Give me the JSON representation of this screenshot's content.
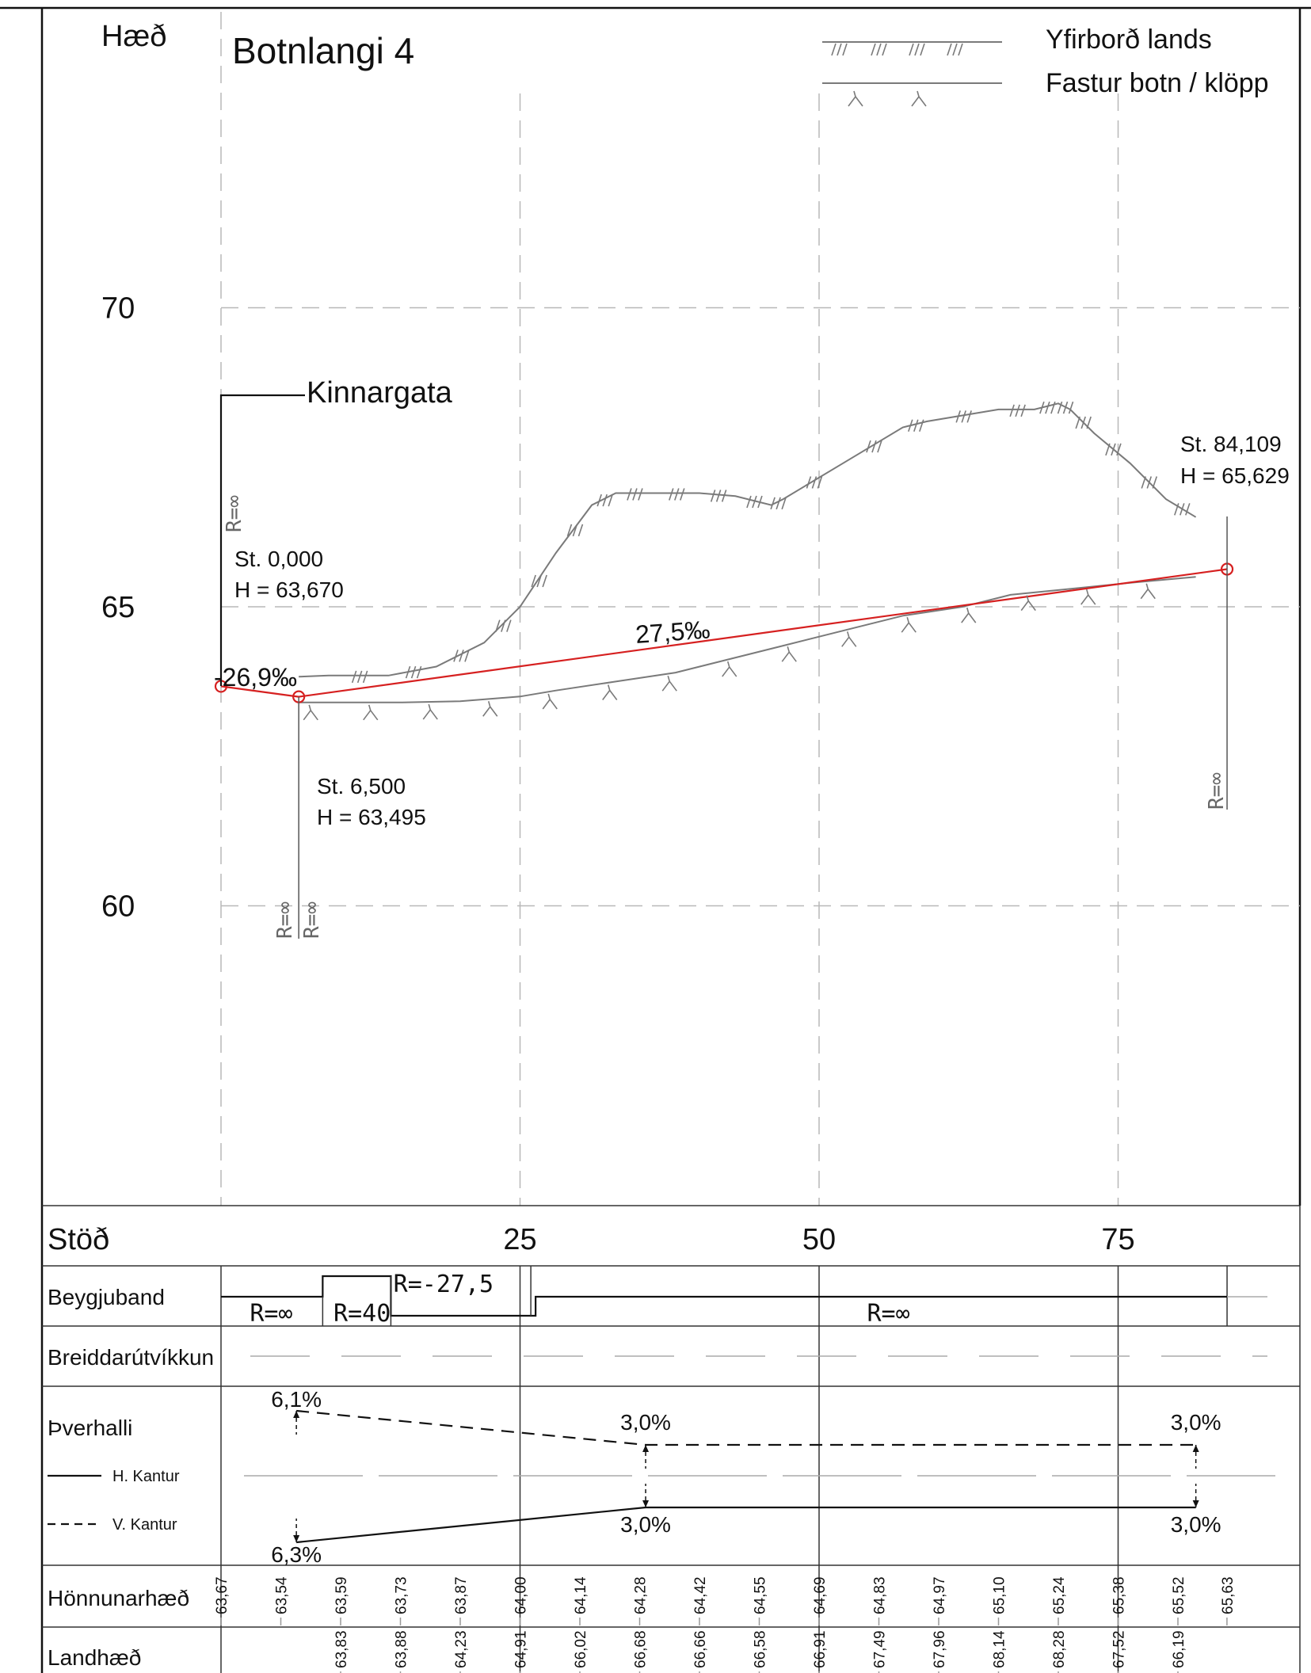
{
  "title": "Botnlangi 4",
  "y_axis": {
    "label": "Hæð",
    "ticks": [
      {
        "value": 70,
        "label": "70"
      },
      {
        "value": 65,
        "label": "65"
      },
      {
        "value": 60,
        "label": "60"
      }
    ]
  },
  "x_axis": {
    "label": "Stöð",
    "ticks": [
      {
        "value": 25,
        "label": "25"
      },
      {
        "value": 50,
        "label": "50"
      },
      {
        "value": 75,
        "label": "75"
      }
    ]
  },
  "legend": [
    {
      "label": "Yfirborð lands",
      "symbol": "hatch"
    },
    {
      "label": "Fastur botn / klöpp",
      "symbol": "fork"
    }
  ],
  "road_label": "Kinnargata",
  "stations": [
    {
      "st_text": "St. 0,000",
      "h_text": "H = 63,670",
      "st": 0.0,
      "h": 63.67
    },
    {
      "st_text": "St. 6,500",
      "h_text": "H = 63,495",
      "st": 6.5,
      "h": 63.495
    },
    {
      "st_text": "St. 84,109",
      "h_text": "H = 65,629",
      "st": 84.109,
      "h": 65.629
    }
  ],
  "grade_labels": [
    {
      "text": "-26,9‰"
    },
    {
      "text": "27,5‰"
    }
  ],
  "radius_labels": {
    "infinite": "R=∞"
  },
  "chart_data": {
    "type": "line",
    "xlim": [
      -15,
      90
    ],
    "ylim": [
      55.5,
      72
    ],
    "grid": true,
    "series": [
      {
        "name": "Yfirborð lands",
        "x": [
          6.5,
          9,
          14,
          18,
          22,
          25,
          28,
          31,
          33,
          36,
          40,
          43,
          46,
          47,
          52,
          57,
          59,
          65,
          68,
          70,
          71,
          73,
          76,
          79,
          81.5
        ],
        "y": [
          63.83,
          63.85,
          63.85,
          64.0,
          64.4,
          65.0,
          65.9,
          66.7,
          66.9,
          66.9,
          66.9,
          66.85,
          66.7,
          66.8,
          67.4,
          68.0,
          68.1,
          68.3,
          68.3,
          68.4,
          68.3,
          67.9,
          67.4,
          66.8,
          66.5
        ]
      },
      {
        "name": "Fastur botn / klöpp",
        "x": [
          6.5,
          10,
          15,
          20,
          25,
          28,
          33,
          38,
          42,
          47,
          52,
          57,
          62,
          66,
          71,
          76,
          81.5
        ],
        "y": [
          63.4,
          63.4,
          63.4,
          63.42,
          63.5,
          63.6,
          63.75,
          63.9,
          64.1,
          64.35,
          64.6,
          64.85,
          65.0,
          65.2,
          65.3,
          65.4,
          65.5
        ]
      },
      {
        "name": "",
        "x": [
          0,
          6.5,
          84.109
        ],
        "y": [
          63.67,
          63.495,
          65.629
        ]
      }
    ]
  },
  "bands": {
    "beygjuband": {
      "label": "Beygjuband",
      "texts": [
        {
          "text": "R=∞",
          "st": 4.2
        },
        {
          "text": "R=40",
          "st": 11.8
        },
        {
          "text": "R=-27,5",
          "st": 18.6
        },
        {
          "text": "R=∞",
          "st": 55.8
        }
      ]
    },
    "breiddarutvikkun": {
      "label": "Breiddarútvíkkun"
    },
    "thverhalli": {
      "label": "Þverhalli",
      "legend_h": "H. Kantur",
      "legend_v": "V. Kantur",
      "values": [
        {
          "text": "6,1%",
          "st": 6.3,
          "side": "upper"
        },
        {
          "text": "3,0%",
          "st": 35.5,
          "side": "upper"
        },
        {
          "text": "3,0%",
          "st": 81.5,
          "side": "upper"
        },
        {
          "text": "6,3%",
          "st": 6.3,
          "side": "lower"
        },
        {
          "text": "3,0%",
          "st": 35.5,
          "side": "lower"
        },
        {
          "text": "3,0%",
          "st": 81.5,
          "side": "lower"
        }
      ]
    },
    "honnunarhaed": {
      "label": "Hönnunarhæð",
      "values": [
        {
          "st": 0,
          "v": "63,67"
        },
        {
          "st": 5,
          "v": "63,54"
        },
        {
          "st": 10,
          "v": "63,59"
        },
        {
          "st": 15,
          "v": "63,73"
        },
        {
          "st": 20,
          "v": "63,87"
        },
        {
          "st": 25,
          "v": "64,00"
        },
        {
          "st": 30,
          "v": "64,14"
        },
        {
          "st": 35,
          "v": "64,28"
        },
        {
          "st": 40,
          "v": "64,42"
        },
        {
          "st": 45,
          "v": "64,55"
        },
        {
          "st": 50,
          "v": "64,69"
        },
        {
          "st": 55,
          "v": "64,83"
        },
        {
          "st": 60,
          "v": "64,97"
        },
        {
          "st": 65,
          "v": "65,10"
        },
        {
          "st": 70,
          "v": "65,24"
        },
        {
          "st": 75,
          "v": "65,38"
        },
        {
          "st": 80,
          "v": "65,52"
        },
        {
          "st": 84.1,
          "v": "65,63"
        }
      ]
    },
    "landhaed": {
      "label": "Landhæð",
      "values": [
        {
          "st": 10,
          "v": "63,83"
        },
        {
          "st": 15,
          "v": "63,88"
        },
        {
          "st": 20,
          "v": "64,23"
        },
        {
          "st": 25,
          "v": "64,91"
        },
        {
          "st": 30,
          "v": "66,02"
        },
        {
          "st": 35,
          "v": "66,68"
        },
        {
          "st": 40,
          "v": "66,66"
        },
        {
          "st": 45,
          "v": "66,58"
        },
        {
          "st": 50,
          "v": "66,91"
        },
        {
          "st": 55,
          "v": "67,49"
        },
        {
          "st": 60,
          "v": "67,96"
        },
        {
          "st": 65,
          "v": "68,14"
        },
        {
          "st": 70,
          "v": "68,28"
        },
        {
          "st": 75,
          "v": "67,52"
        },
        {
          "st": 80,
          "v": "66,19"
        }
      ]
    }
  }
}
